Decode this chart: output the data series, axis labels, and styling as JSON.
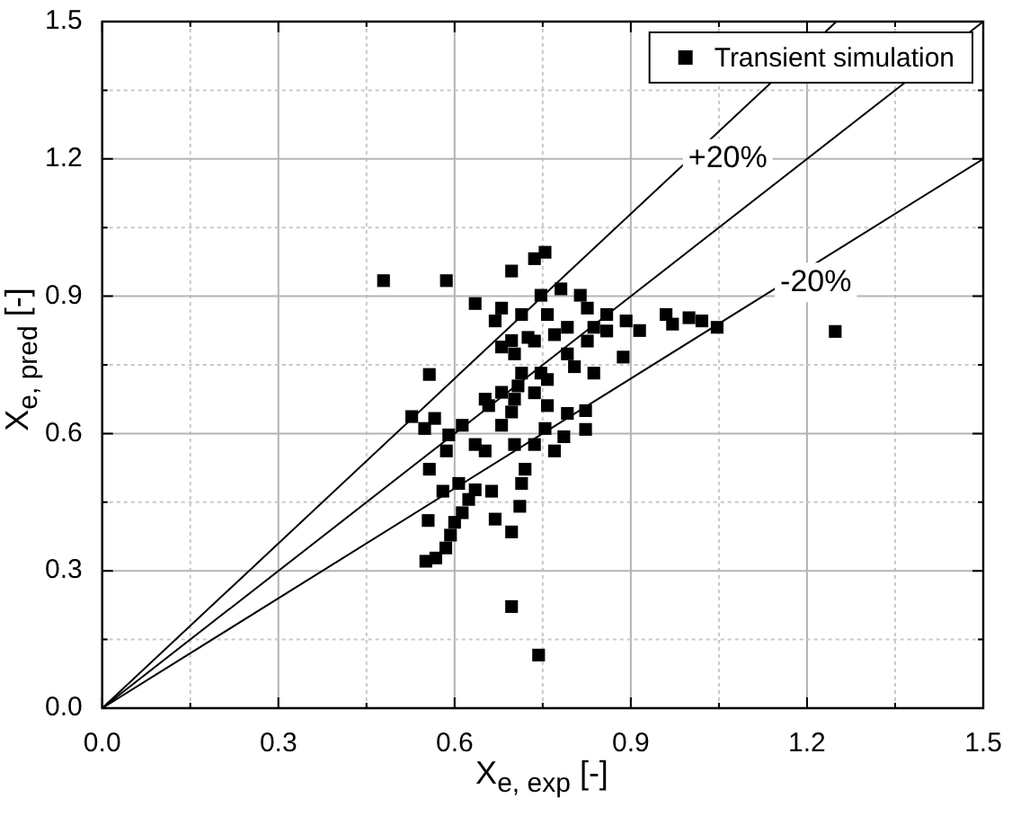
{
  "chart_data": {
    "type": "scatter",
    "xlabel": "X$_{e, exp}$ [-]",
    "ylabel": "X$_{e, pred}$ [-]",
    "xlim": [
      0,
      1.5
    ],
    "ylim": [
      0,
      1.5
    ],
    "xticks": [
      {
        "value": 0,
        "label": "0.0"
      },
      {
        "value": 0.15,
        "label": null
      },
      {
        "value": 0.3,
        "label": "0.3"
      },
      {
        "value": 0.45,
        "label": null
      },
      {
        "value": 0.6,
        "label": "0.6"
      },
      {
        "value": 0.75,
        "label": null
      },
      {
        "value": 0.9,
        "label": "0.9"
      },
      {
        "value": 1.05,
        "label": null
      },
      {
        "value": 1.2,
        "label": "1.2"
      },
      {
        "value": 1.35,
        "label": null
      },
      {
        "value": 1.5,
        "label": "1.5"
      }
    ],
    "yticks": [
      {
        "value": 0,
        "label": "0.0"
      },
      {
        "value": 0.15,
        "label": null
      },
      {
        "value": 0.3,
        "label": "0.3"
      },
      {
        "value": 0.45,
        "label": null
      },
      {
        "value": 0.6,
        "label": "0.6"
      },
      {
        "value": 0.75,
        "label": null
      },
      {
        "value": 0.9,
        "label": "0.9"
      },
      {
        "value": 1.05,
        "label": null
      },
      {
        "value": 1.2,
        "label": "1.2"
      },
      {
        "value": 1.35,
        "label": null
      },
      {
        "value": 1.5,
        "label": "1.5"
      }
    ],
    "grid": true,
    "legend": "top right",
    "marker": "square",
    "annotations": [
      "+20%",
      "-20%"
    ],
    "series": [
      {
        "name": "Transient simulation",
        "type": "scatter",
        "color": "#000000",
        "x": [
          0.479,
          0.586,
          0.635,
          0.697,
          0.736,
          0.754,
          1.248,
          0.697,
          0.743,
          0.557,
          0.527,
          0.549,
          0.566,
          0.557,
          0.555,
          0.551,
          0.568,
          0.585,
          0.593,
          0.6,
          0.613,
          0.624,
          0.58,
          0.607,
          0.635,
          0.663,
          0.669,
          0.697,
          0.711,
          0.714,
          0.72,
          0.586,
          0.59,
          0.613,
          0.635,
          0.652,
          0.68,
          0.702,
          0.736,
          0.754,
          0.77,
          0.786,
          0.792,
          0.823,
          0.823,
          0.652,
          0.68,
          0.702,
          0.714,
          0.68,
          0.669,
          0.68,
          0.714,
          0.747,
          0.781,
          0.814,
          0.826,
          0.859,
          0.892,
          0.915,
          0.96,
          0.971,
          0.999,
          1.021,
          1.047,
          0.887,
          0.837,
          0.804,
          0.758,
          0.736,
          0.77,
          0.792,
          0.826,
          0.859,
          0.736,
          0.697,
          0.658,
          0.758,
          0.702,
          0.725,
          0.747,
          0.697,
          0.792,
          0.837,
          0.758,
          0.708
        ],
        "values": [
          0.934,
          0.934,
          0.884,
          0.955,
          0.982,
          0.996,
          0.823,
          0.222,
          0.116,
          0.729,
          0.637,
          0.611,
          0.633,
          0.522,
          0.41,
          0.321,
          0.328,
          0.35,
          0.378,
          0.406,
          0.427,
          0.456,
          0.474,
          0.491,
          0.477,
          0.474,
          0.413,
          0.385,
          0.441,
          0.491,
          0.522,
          0.562,
          0.597,
          0.618,
          0.576,
          0.562,
          0.618,
          0.576,
          0.576,
          0.611,
          0.562,
          0.593,
          0.644,
          0.65,
          0.609,
          0.675,
          0.69,
          0.675,
          0.732,
          0.789,
          0.846,
          0.874,
          0.86,
          0.902,
          0.916,
          0.902,
          0.874,
          0.86,
          0.846,
          0.825,
          0.86,
          0.839,
          0.853,
          0.846,
          0.832,
          0.767,
          0.732,
          0.746,
          0.718,
          0.802,
          0.816,
          0.774,
          0.802,
          0.824,
          0.689,
          0.647,
          0.661,
          0.661,
          0.774,
          0.81,
          0.732,
          0.803,
          0.832,
          0.832,
          0.86,
          0.704
        ]
      },
      {
        "type": "line",
        "color": "#000000",
        "marker": "none",
        "x": [
          0,
          1.25
        ],
        "values": [
          0,
          1.5
        ]
      },
      {
        "type": "line",
        "color": "#000000",
        "marker": "none",
        "x": [
          0,
          1.5
        ],
        "values": [
          0,
          1.5
        ]
      },
      {
        "type": "line",
        "color": "#000000",
        "marker": "none",
        "x": [
          0,
          1.5
        ],
        "values": [
          0,
          1.2
        ]
      }
    ]
  }
}
